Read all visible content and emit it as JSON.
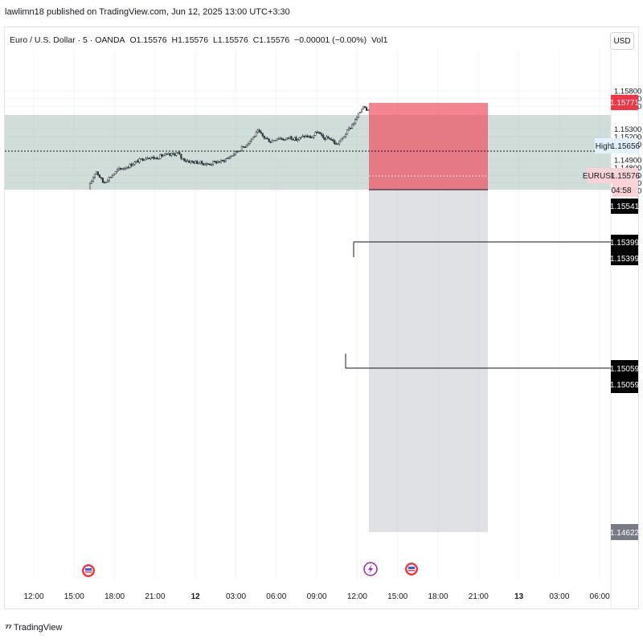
{
  "header": {
    "publish_text": "lawlimn18 published on TradingView.com, Jun 12, 2025 13:00 UTC+3:30"
  },
  "legend": {
    "symbol": "Euro / U.S. Dollar · 5 · OANDA",
    "open": "O1.15576",
    "high": "H1.15576",
    "low": "L1.15576",
    "close": "C1.15576",
    "change": "−0.00001 (−0.00%)",
    "volume": "Vol1"
  },
  "currency_button": "USD",
  "footer": {
    "brand": "TradingView"
  },
  "colors": {
    "candle": "#2a2e39",
    "zone": "#b2c6c0",
    "stop_box": "#f05060",
    "target_box": "#b2b5be",
    "badge_red": "#f23645",
    "badge_dark": "#000000",
    "badge_grey": "#787b86",
    "badge_light": "#e3f2fd",
    "badge_pink": "#fbd3d6"
  },
  "chart_data": {
    "type": "candlestick",
    "symbol": "EURUSD",
    "timeframe": "5",
    "y_ticks": [
      "1.15800",
      "1.15700",
      "1.15600",
      "1.15300",
      "1.15200",
      "1.15100",
      "1.14900",
      "1.14800",
      "1.14700",
      "1.14600",
      "1.14500"
    ],
    "x_ticks": [
      "12:00",
      "15:00",
      "18:00",
      "21:00",
      "12",
      "03:00",
      "06:00",
      "09:00",
      "12:00",
      "15:00",
      "18:00",
      "21:00",
      "13",
      "03:00",
      "06:00"
    ],
    "ylim": [
      1.1445,
      1.159
    ],
    "path": [
      [
        0.0,
        1.1452
      ],
      [
        1.0,
        1.1476
      ],
      [
        2.0,
        1.146
      ],
      [
        3.0,
        1.1468
      ],
      [
        4.0,
        1.1477
      ],
      [
        5.0,
        1.148
      ],
      [
        6.0,
        1.1485
      ],
      [
        7.0,
        1.149
      ],
      [
        8.0,
        1.1494
      ],
      [
        9.0,
        1.1492
      ],
      [
        10.0,
        1.1496
      ],
      [
        11.0,
        1.1496
      ],
      [
        12.0,
        1.1499
      ],
      [
        12.5,
        1.1492
      ],
      [
        13.5,
        1.1488
      ],
      [
        15.0,
        1.1486
      ],
      [
        16.0,
        1.1484
      ],
      [
        17.0,
        1.1487
      ],
      [
        18.0,
        1.1488
      ],
      [
        19.0,
        1.1494
      ],
      [
        20.0,
        1.1501
      ],
      [
        21.0,
        1.1508
      ],
      [
        22.0,
        1.1518
      ],
      [
        22.8,
        1.1527
      ],
      [
        23.5,
        1.152
      ],
      [
        24.5,
        1.1514
      ],
      [
        25.5,
        1.1519
      ],
      [
        26.5,
        1.1516
      ],
      [
        27.0,
        1.152
      ],
      [
        28.0,
        1.1516
      ],
      [
        29.0,
        1.1521
      ],
      [
        30.0,
        1.1519
      ],
      [
        30.8,
        1.1527
      ],
      [
        31.5,
        1.1518
      ],
      [
        32.5,
        1.1518
      ],
      [
        33.3,
        1.151
      ],
      [
        34.0,
        1.1516
      ],
      [
        35.0,
        1.153
      ],
      [
        35.8,
        1.154
      ],
      [
        36.5,
        1.1552
      ],
      [
        37.0,
        1.1562
      ],
      [
        37.4,
        1.1556
      ],
      [
        37.6,
        1.15576
      ]
    ],
    "levels": {
      "high": {
        "label": "High",
        "value": "1.15656"
      },
      "last": {
        "label": "EURUSD",
        "value": "1.15576",
        "countdown": "04:58"
      },
      "stop": "1.15771",
      "entry": "1.15541",
      "level_a": [
        "1.15399",
        "1.15399"
      ],
      "level_b": [
        "1.15059",
        "1.15059"
      ],
      "target": "1.14622"
    }
  }
}
